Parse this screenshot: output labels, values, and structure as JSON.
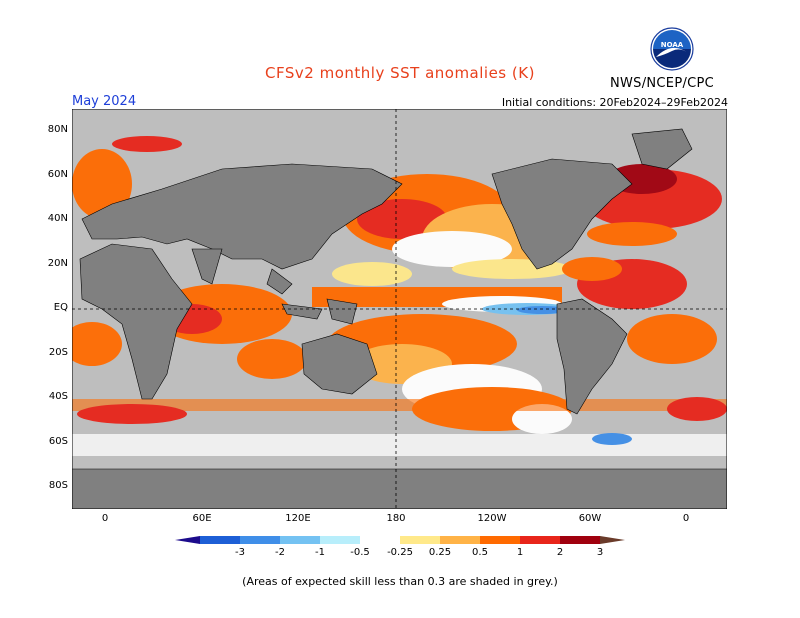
{
  "header": {
    "title": "CFSv2 monthly SST anomalies (K)",
    "month": "May 2024",
    "initial_conditions": "Initial conditions: 20Feb2024–29Feb2024",
    "agency": "NWS/NCEP/CPC",
    "logo_text": "NOAA"
  },
  "axes": {
    "lat_labels": [
      "80N",
      "60N",
      "40N",
      "20N",
      "EQ",
      "20S",
      "40S",
      "60S",
      "80S"
    ],
    "lon_labels": [
      "0",
      "60E",
      "120E",
      "180",
      "120W",
      "60W",
      "0"
    ]
  },
  "colorbar": {
    "labels": [
      "-3",
      "-2",
      "-1",
      "-0.5",
      "-0.25",
      "0.25",
      "0.5",
      "1",
      "2",
      "3"
    ],
    "colors": [
      "#1c0b8c",
      "#1d5fd6",
      "#3f8ee8",
      "#74c2f2",
      "#b8eefb",
      "#ffffff",
      "#ffe98a",
      "#ffb347",
      "#ff6a00",
      "#e8251a",
      "#a0000e",
      "#6a3b2a"
    ]
  },
  "footer": {
    "note": "(Areas of expected skill less than 0.3 are shaded in grey.)"
  },
  "colors": {
    "land": "#808080",
    "grey_mask": "#bebebe",
    "title": "#e8401c",
    "month": "#1e3fd8"
  }
}
